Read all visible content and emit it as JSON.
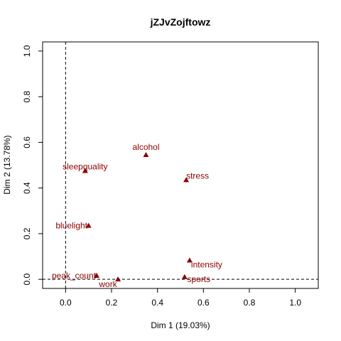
{
  "chart_data": {
    "type": "scatter",
    "title": "jZJvZojftowz",
    "xlabel": "Dim 1 (19.03%)",
    "ylabel": "Dim 2 (13.78%)",
    "xlim": [
      -0.1,
      1.1
    ],
    "ylim": [
      -0.04,
      1.04
    ],
    "xticks": [
      "0.0",
      "0.2",
      "0.4",
      "0.6",
      "0.8",
      "1.0"
    ],
    "yticks": [
      "0.0",
      "0.2",
      "0.4",
      "0.6",
      "0.8",
      "1.0"
    ],
    "reference_lines": {
      "x": 0,
      "y": 0,
      "style": "dashed"
    },
    "grid": false,
    "marker": "triangle",
    "color": "#8b0000",
    "points": [
      {
        "label": "alcohol",
        "x": 0.35,
        "y": 0.545
      },
      {
        "label": "sleepquality",
        "x": 0.085,
        "y": 0.475
      },
      {
        "label": "stress",
        "x": 0.525,
        "y": 0.435
      },
      {
        "label": "bluelight",
        "x": 0.1,
        "y": 0.235
      },
      {
        "label": "intensity",
        "x": 0.54,
        "y": 0.083
      },
      {
        "label": "peak_count",
        "x": 0.135,
        "y": 0.016
      },
      {
        "label": "work",
        "x": 0.228,
        "y": 0.0
      },
      {
        "label": "sports",
        "x": 0.518,
        "y": 0.01
      }
    ]
  }
}
